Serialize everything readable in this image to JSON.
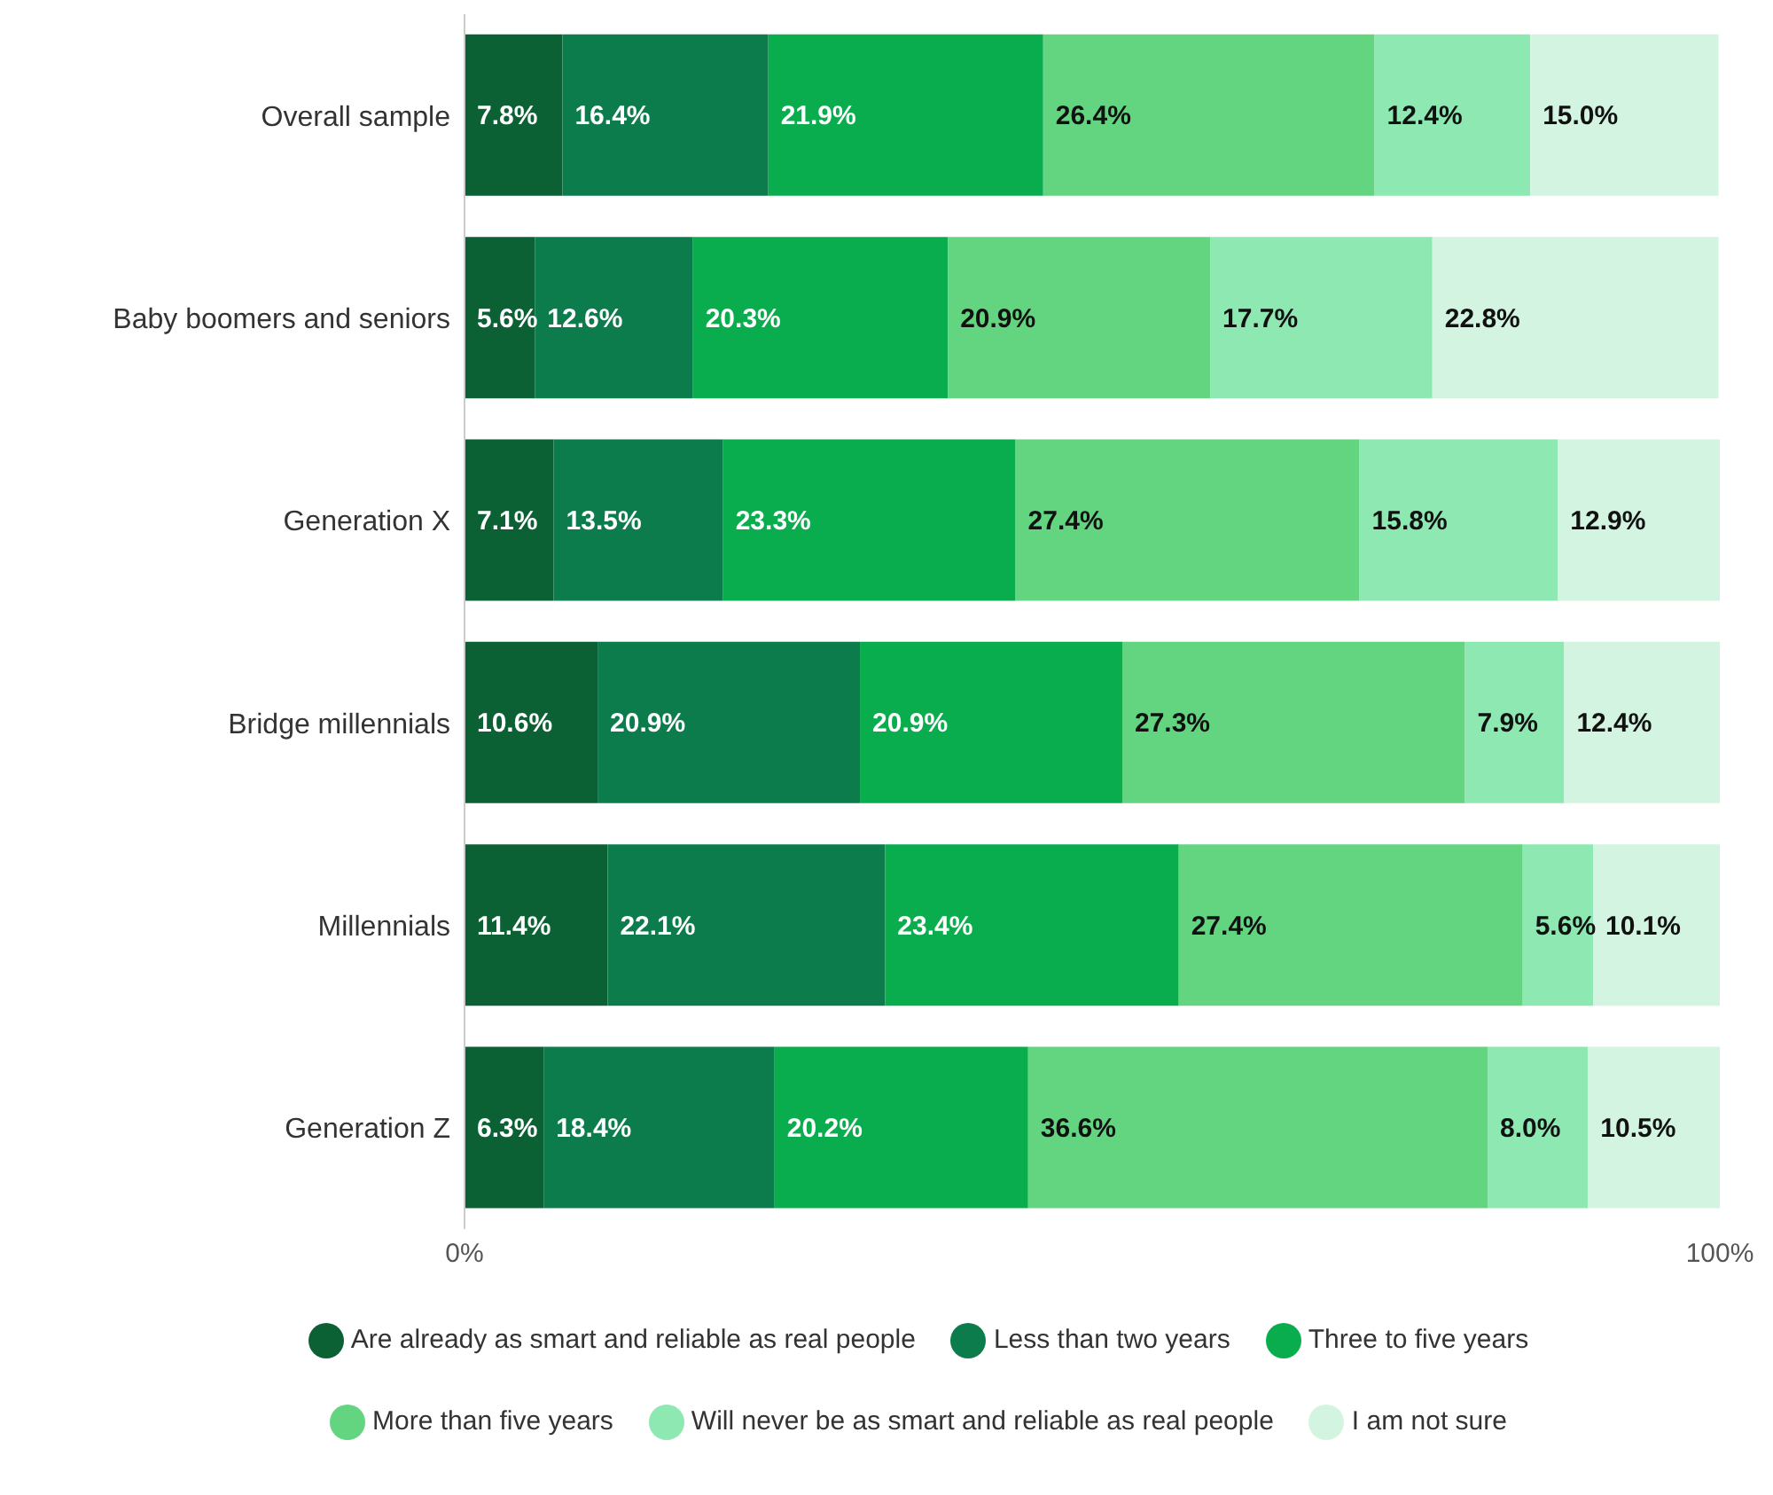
{
  "chart_data": {
    "type": "bar",
    "orientation": "horizontal",
    "stacked": true,
    "categories": [
      "Overall sample",
      "Baby boomers and seniors",
      "Generation X",
      "Bridge millennials",
      "Millennials",
      "Generation Z"
    ],
    "series": [
      {
        "name": "Are already as smart and reliable as real people",
        "color": "#0b6133",
        "values": [
          7.8,
          5.6,
          7.1,
          10.6,
          11.4,
          6.3
        ],
        "value_labels": [
          "7.8%",
          "5.6%",
          "7.1%",
          "10.6%",
          "11.4%",
          "6.3%"
        ]
      },
      {
        "name": "Less than two years",
        "color": "#0c7c4c",
        "values": [
          16.4,
          12.6,
          13.5,
          20.9,
          22.1,
          18.4
        ],
        "value_labels": [
          "16.4%",
          "12.6%",
          "13.5%",
          "20.9%",
          "22.1%",
          "18.4%"
        ]
      },
      {
        "name": "Three to five years",
        "color": "#0aad4d",
        "values": [
          21.9,
          20.3,
          23.3,
          20.9,
          23.4,
          20.2
        ],
        "value_labels": [
          "21.9%",
          "20.3%",
          "23.3%",
          "20.9%",
          "23.4%",
          "20.2%"
        ]
      },
      {
        "name": "More than five years",
        "color": "#63d47f",
        "values": [
          26.4,
          20.9,
          27.4,
          27.3,
          27.4,
          36.6
        ],
        "value_labels": [
          "26.4%",
          "20.9%",
          "27.4%",
          "27.3%",
          "27.4%",
          "36.6%"
        ]
      },
      {
        "name": "Will never be as smart and reliable as real people",
        "color": "#8de8b2",
        "values": [
          12.4,
          17.7,
          15.8,
          7.9,
          5.6,
          8.0
        ],
        "value_labels": [
          "12.4%",
          "17.7%",
          "15.8%",
          "7.9%",
          "5.6%",
          "8.0%"
        ]
      },
      {
        "name": "I am not sure",
        "color": "#d3f4e0",
        "values": [
          15.0,
          22.8,
          12.9,
          12.4,
          10.1,
          10.5
        ],
        "value_labels": [
          "15.0%",
          "22.8%",
          "12.9%",
          "12.4%",
          "10.1%",
          "10.5%"
        ]
      }
    ],
    "xlim": [
      0,
      100
    ],
    "xticks": [
      {
        "value": 0,
        "label": "0%"
      },
      {
        "value": 100,
        "label": "100%"
      }
    ],
    "legend": "bottom"
  }
}
